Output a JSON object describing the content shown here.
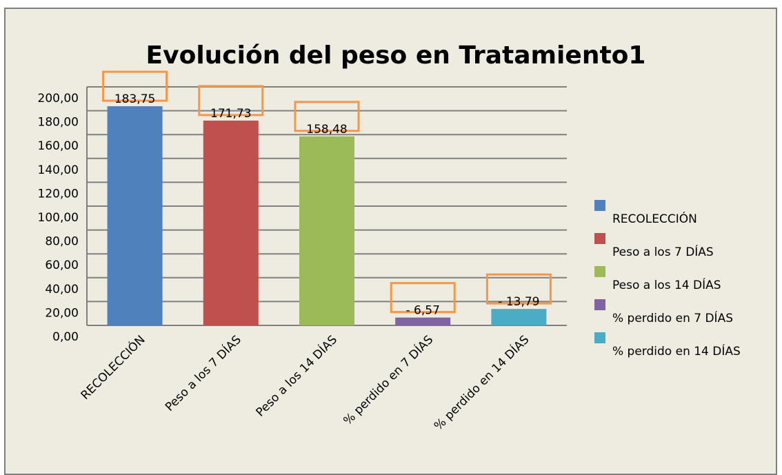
{
  "chart_data": {
    "type": "bar",
    "title": "Evolución del peso en Tratamiento1",
    "categories": [
      "RECOLECCIÓN",
      "Peso a los 7 DÍAS",
      "Peso a los 14 DÍAS",
      "% perdido en 7 DÍAS",
      "% perdido en 14 DÍAS"
    ],
    "values": [
      183.75,
      171.73,
      158.48,
      6.57,
      13.79
    ],
    "value_labels": [
      "183,75",
      "171,73",
      "158,48",
      "- 6,57",
      "- 13,79"
    ],
    "colors": [
      "#4f81bd",
      "#c0504d",
      "#9bbb59",
      "#8064a2",
      "#4bacc6"
    ],
    "ylim": [
      0,
      200
    ],
    "yticks": [
      {
        "value": 0,
        "label": "0,00"
      },
      {
        "value": 20,
        "label": "20,00"
      },
      {
        "value": 40,
        "label": "40,00"
      },
      {
        "value": 60,
        "label": "60,00"
      },
      {
        "value": 80,
        "label": "80,00"
      },
      {
        "value": 100,
        "label": "100,00"
      },
      {
        "value": 120,
        "label": "120,00"
      },
      {
        "value": 140,
        "label": "140,00"
      },
      {
        "value": 160,
        "label": "160,00"
      },
      {
        "value": 180,
        "label": "180,00"
      },
      {
        "value": 200,
        "label": "200,00"
      }
    ],
    "grid": true,
    "legend": "right"
  }
}
